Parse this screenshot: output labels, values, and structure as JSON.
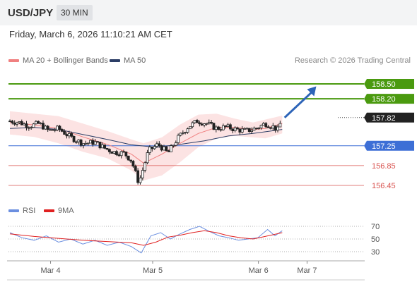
{
  "header": {
    "pair": "USD/JPY",
    "timeframe": "30 MIN"
  },
  "datetime": "Friday, March 6, 2026 11:10:21 AM CET",
  "legend": {
    "ma20": "MA 20 + Bollinger Bands",
    "ma50": "MA 50",
    "credit": "Research © 2026 Trading Central",
    "rsi": "RSI",
    "rsi_ma": "9MA"
  },
  "colors": {
    "green": "#4a9a0f",
    "blue": "#3d6fd6",
    "red": "#d9534f",
    "navy": "#2c3e66",
    "band": "#fbdcdc",
    "ma20": "#f08080",
    "rsi": "#6b8fe0",
    "rsi_ma": "#e02020"
  },
  "chart_data": [
    {
      "type": "candlestick",
      "ylim": [
        156.35,
        158.7
      ],
      "x_ticks": [
        "Mar 4",
        "Mar 5",
        "Mar 6",
        "Mar 7"
      ],
      "x_tick_pos": [
        0.16,
        1.0,
        1.87,
        2.27
      ],
      "series_path": {
        "t": [
          0.0,
          0.08,
          0.16,
          0.24,
          0.32,
          0.4,
          0.5,
          0.6,
          0.7,
          0.78,
          0.86,
          0.94,
          1.0,
          1.06,
          1.14,
          1.22,
          1.3,
          1.38,
          1.46,
          1.54,
          1.62,
          1.7,
          1.78,
          1.86,
          1.94,
          2.02,
          2.1,
          2.18,
          2.2,
          2.24
        ],
        "close": [
          157.75,
          157.72,
          157.65,
          157.7,
          157.55,
          157.6,
          157.42,
          157.3,
          157.32,
          157.2,
          157.12,
          157.1,
          156.95,
          156.5,
          157.15,
          157.28,
          157.1,
          157.4,
          157.62,
          157.75,
          157.7,
          157.6,
          157.63,
          157.58,
          157.55,
          157.6,
          157.7,
          157.62,
          157.55,
          157.8
        ]
      },
      "ma20": [
        [
          0.0,
          157.72
        ],
        [
          0.2,
          157.67
        ],
        [
          0.4,
          157.6
        ],
        [
          0.6,
          157.43
        ],
        [
          0.8,
          157.28
        ],
        [
          1.0,
          157.08
        ],
        [
          1.1,
          156.9
        ],
        [
          1.25,
          157.08
        ],
        [
          1.4,
          157.3
        ],
        [
          1.55,
          157.5
        ],
        [
          1.7,
          157.62
        ],
        [
          1.85,
          157.62
        ],
        [
          2.0,
          157.58
        ],
        [
          2.1,
          157.6
        ],
        [
          2.24,
          157.7
        ]
      ],
      "ma50": [
        [
          0.0,
          157.6
        ],
        [
          0.2,
          157.62
        ],
        [
          0.4,
          157.58
        ],
        [
          0.6,
          157.48
        ],
        [
          0.8,
          157.38
        ],
        [
          1.0,
          157.27
        ],
        [
          1.2,
          157.22
        ],
        [
          1.4,
          157.28
        ],
        [
          1.6,
          157.35
        ],
        [
          1.8,
          157.45
        ],
        [
          2.0,
          157.5
        ],
        [
          2.24,
          157.58
        ]
      ],
      "bb_upper": [
        [
          0.0,
          157.95
        ],
        [
          0.2,
          157.9
        ],
        [
          0.4,
          157.85
        ],
        [
          0.6,
          157.7
        ],
        [
          0.8,
          157.55
        ],
        [
          1.0,
          157.38
        ],
        [
          1.1,
          157.3
        ],
        [
          1.25,
          157.42
        ],
        [
          1.4,
          157.68
        ],
        [
          1.55,
          157.88
        ],
        [
          1.7,
          157.9
        ],
        [
          1.85,
          157.8
        ],
        [
          2.0,
          157.72
        ],
        [
          2.1,
          157.78
        ],
        [
          2.24,
          157.86
        ]
      ],
      "bb_lower": [
        [
          0.0,
          157.48
        ],
        [
          0.2,
          157.43
        ],
        [
          0.4,
          157.3
        ],
        [
          0.6,
          157.13
        ],
        [
          0.8,
          157.0
        ],
        [
          1.0,
          156.75
        ],
        [
          1.1,
          156.55
        ],
        [
          1.25,
          156.65
        ],
        [
          1.4,
          156.92
        ],
        [
          1.55,
          157.22
        ],
        [
          1.7,
          157.4
        ],
        [
          1.85,
          157.45
        ],
        [
          2.0,
          157.42
        ],
        [
          2.1,
          157.4
        ],
        [
          2.24,
          157.5
        ]
      ],
      "levels": [
        {
          "value": 158.5,
          "label": "158.50",
          "style": "resistance"
        },
        {
          "value": 158.2,
          "label": "158.20",
          "style": "resistance"
        },
        {
          "value": 157.82,
          "label": "157.82",
          "style": "last"
        },
        {
          "value": 157.25,
          "label": "157.25",
          "style": "pivot"
        },
        {
          "value": 156.85,
          "label": "156.85",
          "style": "support"
        },
        {
          "value": 156.45,
          "label": "156.45",
          "style": "support"
        }
      ],
      "arrow": {
        "from": [
          2.26,
          157.82
        ],
        "to": [
          2.52,
          158.45
        ]
      }
    },
    {
      "type": "line",
      "title": "RSI",
      "ylim": [
        20,
        80
      ],
      "y_ticks": [
        70,
        50,
        30
      ],
      "series": [
        {
          "name": "RSI",
          "x": [
            0.0,
            0.1,
            0.2,
            0.3,
            0.4,
            0.5,
            0.6,
            0.7,
            0.8,
            0.9,
            1.0,
            1.08,
            1.16,
            1.24,
            1.32,
            1.4,
            1.48,
            1.56,
            1.64,
            1.72,
            1.8,
            1.88,
            1.96,
            2.04,
            2.12,
            2.18,
            2.24
          ],
          "values": [
            60,
            52,
            48,
            55,
            45,
            50,
            42,
            48,
            40,
            45,
            38,
            28,
            55,
            60,
            50,
            58,
            65,
            70,
            62,
            55,
            52,
            48,
            50,
            52,
            65,
            55,
            63
          ]
        },
        {
          "name": "9MA",
          "x": [
            0.0,
            0.2,
            0.4,
            0.6,
            0.8,
            1.0,
            1.1,
            1.2,
            1.3,
            1.4,
            1.5,
            1.6,
            1.7,
            1.8,
            1.9,
            2.0,
            2.1,
            2.24
          ],
          "values": [
            58,
            54,
            51,
            48,
            46,
            44,
            40,
            45,
            53,
            56,
            60,
            63,
            60,
            55,
            52,
            50,
            54,
            60
          ]
        }
      ]
    }
  ]
}
